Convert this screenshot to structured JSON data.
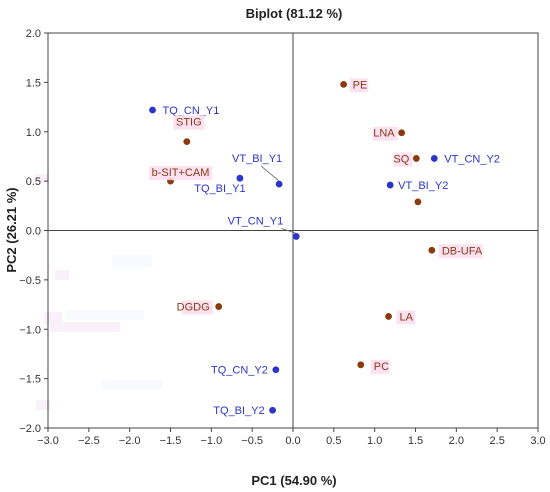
{
  "chart_data": {
    "type": "scatter",
    "title": "Biplot (81.12 %)",
    "xlabel": "PC1 (54.90 %)",
    "ylabel": "PC2 (26.21 %)",
    "xlim": [
      -3.0,
      3.0
    ],
    "ylim": [
      -2.0,
      2.0
    ],
    "xticks": [
      "−3.0",
      "−2.5",
      "−2.0",
      "−1.5",
      "−1.0",
      "−0.5",
      "0.0",
      "0.5",
      "1.0",
      "1.5",
      "2.0",
      "2.5",
      "3.0"
    ],
    "yticks": [
      "−2.0",
      "−1.5",
      "−1.0",
      "−0.5",
      "0.0",
      "0.5",
      "1.0",
      "1.5",
      "2.0"
    ],
    "grid": false,
    "colors": {
      "observations": "#2c35c9",
      "variables": "#8b3a10",
      "observation_label": "#2c35c9",
      "variable_label": "#8b3a10",
      "axis": "#444444"
    },
    "series": [
      {
        "kind": "observations",
        "points": [
          {
            "label": "TQ_CN_Y1",
            "x": -1.72,
            "y": 1.22
          },
          {
            "label": "VT_BI_Y1",
            "x": -0.17,
            "y": 0.47
          },
          {
            "label": "TQ_BI_Y1",
            "x": -0.65,
            "y": 0.53
          },
          {
            "label": "VT_CN_Y1",
            "x": 0.04,
            "y": -0.06
          },
          {
            "label": "VT_CN_Y2",
            "x": 1.73,
            "y": 0.73
          },
          {
            "label": "VT_BI_Y2",
            "x": 1.19,
            "y": 0.46
          },
          {
            "label": "TQ_CN_Y2",
            "x": -0.21,
            "y": -1.41
          },
          {
            "label": "TQ_BI_Y2",
            "x": -0.25,
            "y": -1.82
          }
        ]
      },
      {
        "kind": "variables",
        "points": [
          {
            "label": "PE",
            "x": 0.62,
            "y": 1.48
          },
          {
            "label": "STIG",
            "x": -1.3,
            "y": 0.9
          },
          {
            "label": "b-SIT+CAM",
            "x": -1.5,
            "y": 0.5
          },
          {
            "label": "LNA",
            "x": 1.33,
            "y": 0.99
          },
          {
            "label": "SQ",
            "x": 1.51,
            "y": 0.73
          },
          {
            "label": "",
            "x": 1.53,
            "y": 0.29
          },
          {
            "label": "DB-UFA",
            "x": 1.7,
            "y": -0.2
          },
          {
            "label": "DGDG",
            "x": -0.91,
            "y": -0.77
          },
          {
            "label": "LA",
            "x": 1.17,
            "y": -0.87
          },
          {
            "label": "PC",
            "x": 0.83,
            "y": -1.36
          }
        ]
      }
    ]
  }
}
